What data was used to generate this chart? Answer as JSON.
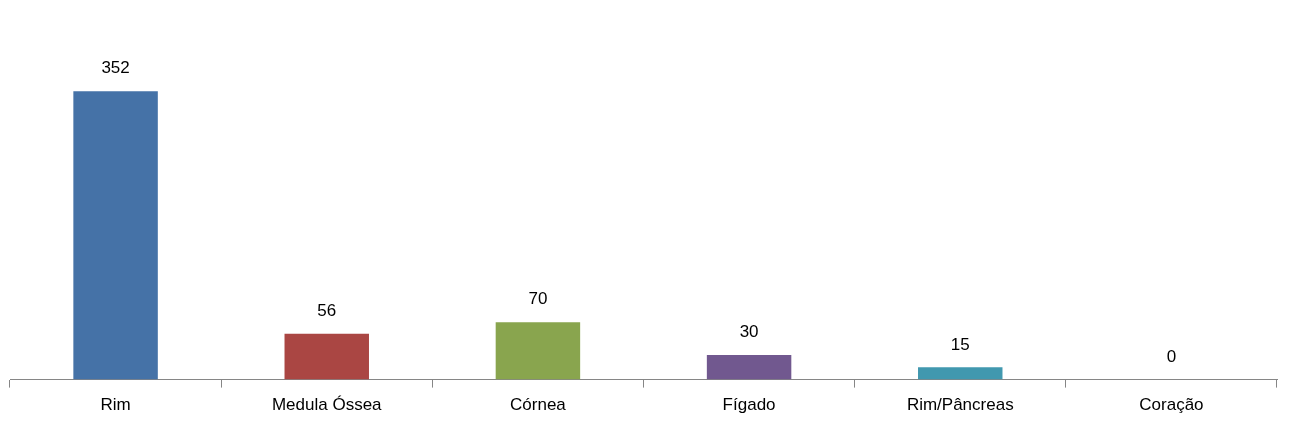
{
  "chart_data": {
    "type": "bar",
    "categories": [
      "Rim",
      "Medula Óssea",
      "Córnea",
      "Fígado",
      "Rim/Pâncreas",
      "Coração"
    ],
    "values": [
      352,
      56,
      70,
      30,
      15,
      0
    ],
    "colors": [
      "#4572a7",
      "#aa4643",
      "#89a54e",
      "#71588f",
      "#4198af",
      "#db843d"
    ],
    "data_labels": true
  }
}
